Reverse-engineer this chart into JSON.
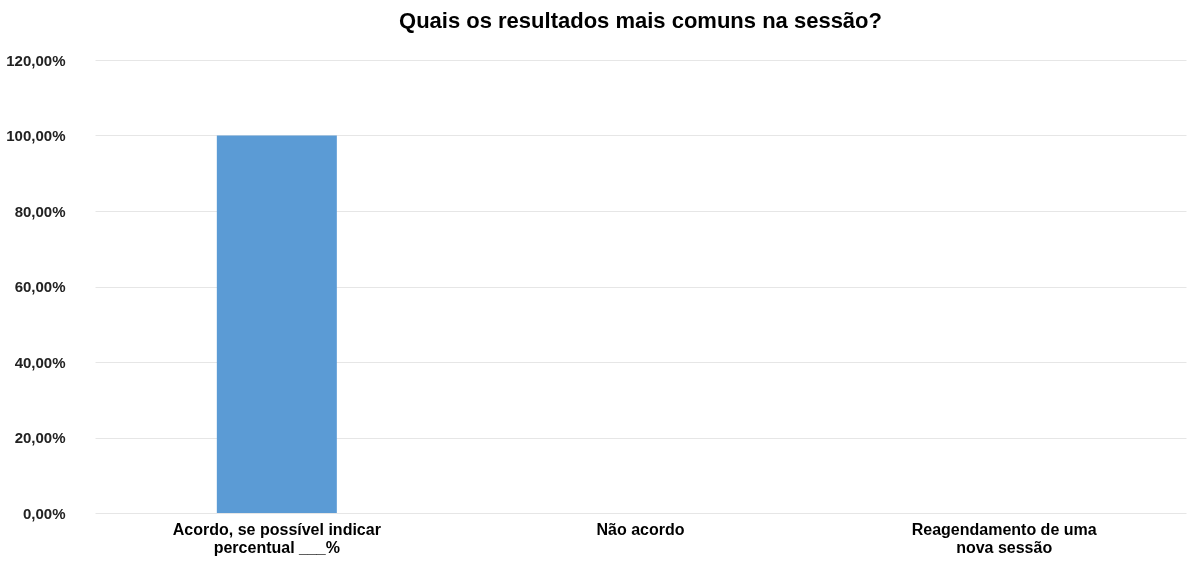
{
  "chart_data": {
    "type": "bar",
    "title": "Quais os resultados mais comuns na sessão?",
    "categories": [
      "Acordo, se possível indicar\npercentual ___%",
      "Não acordo",
      "Reagendamento de uma\nnova sessão"
    ],
    "values": [
      100,
      0,
      0
    ],
    "color": "#5b9bd5",
    "ylim": [
      0,
      120
    ],
    "yticks": [
      {
        "value": 0,
        "label": "0,00%"
      },
      {
        "value": 20,
        "label": "20,00%"
      },
      {
        "value": 40,
        "label": "40,00%"
      },
      {
        "value": 60,
        "label": "60,00%"
      },
      {
        "value": 80,
        "label": "80,00%"
      },
      {
        "value": 100,
        "label": "100,00%"
      },
      {
        "value": 120,
        "label": "120,00%"
      }
    ],
    "grid": "y"
  }
}
